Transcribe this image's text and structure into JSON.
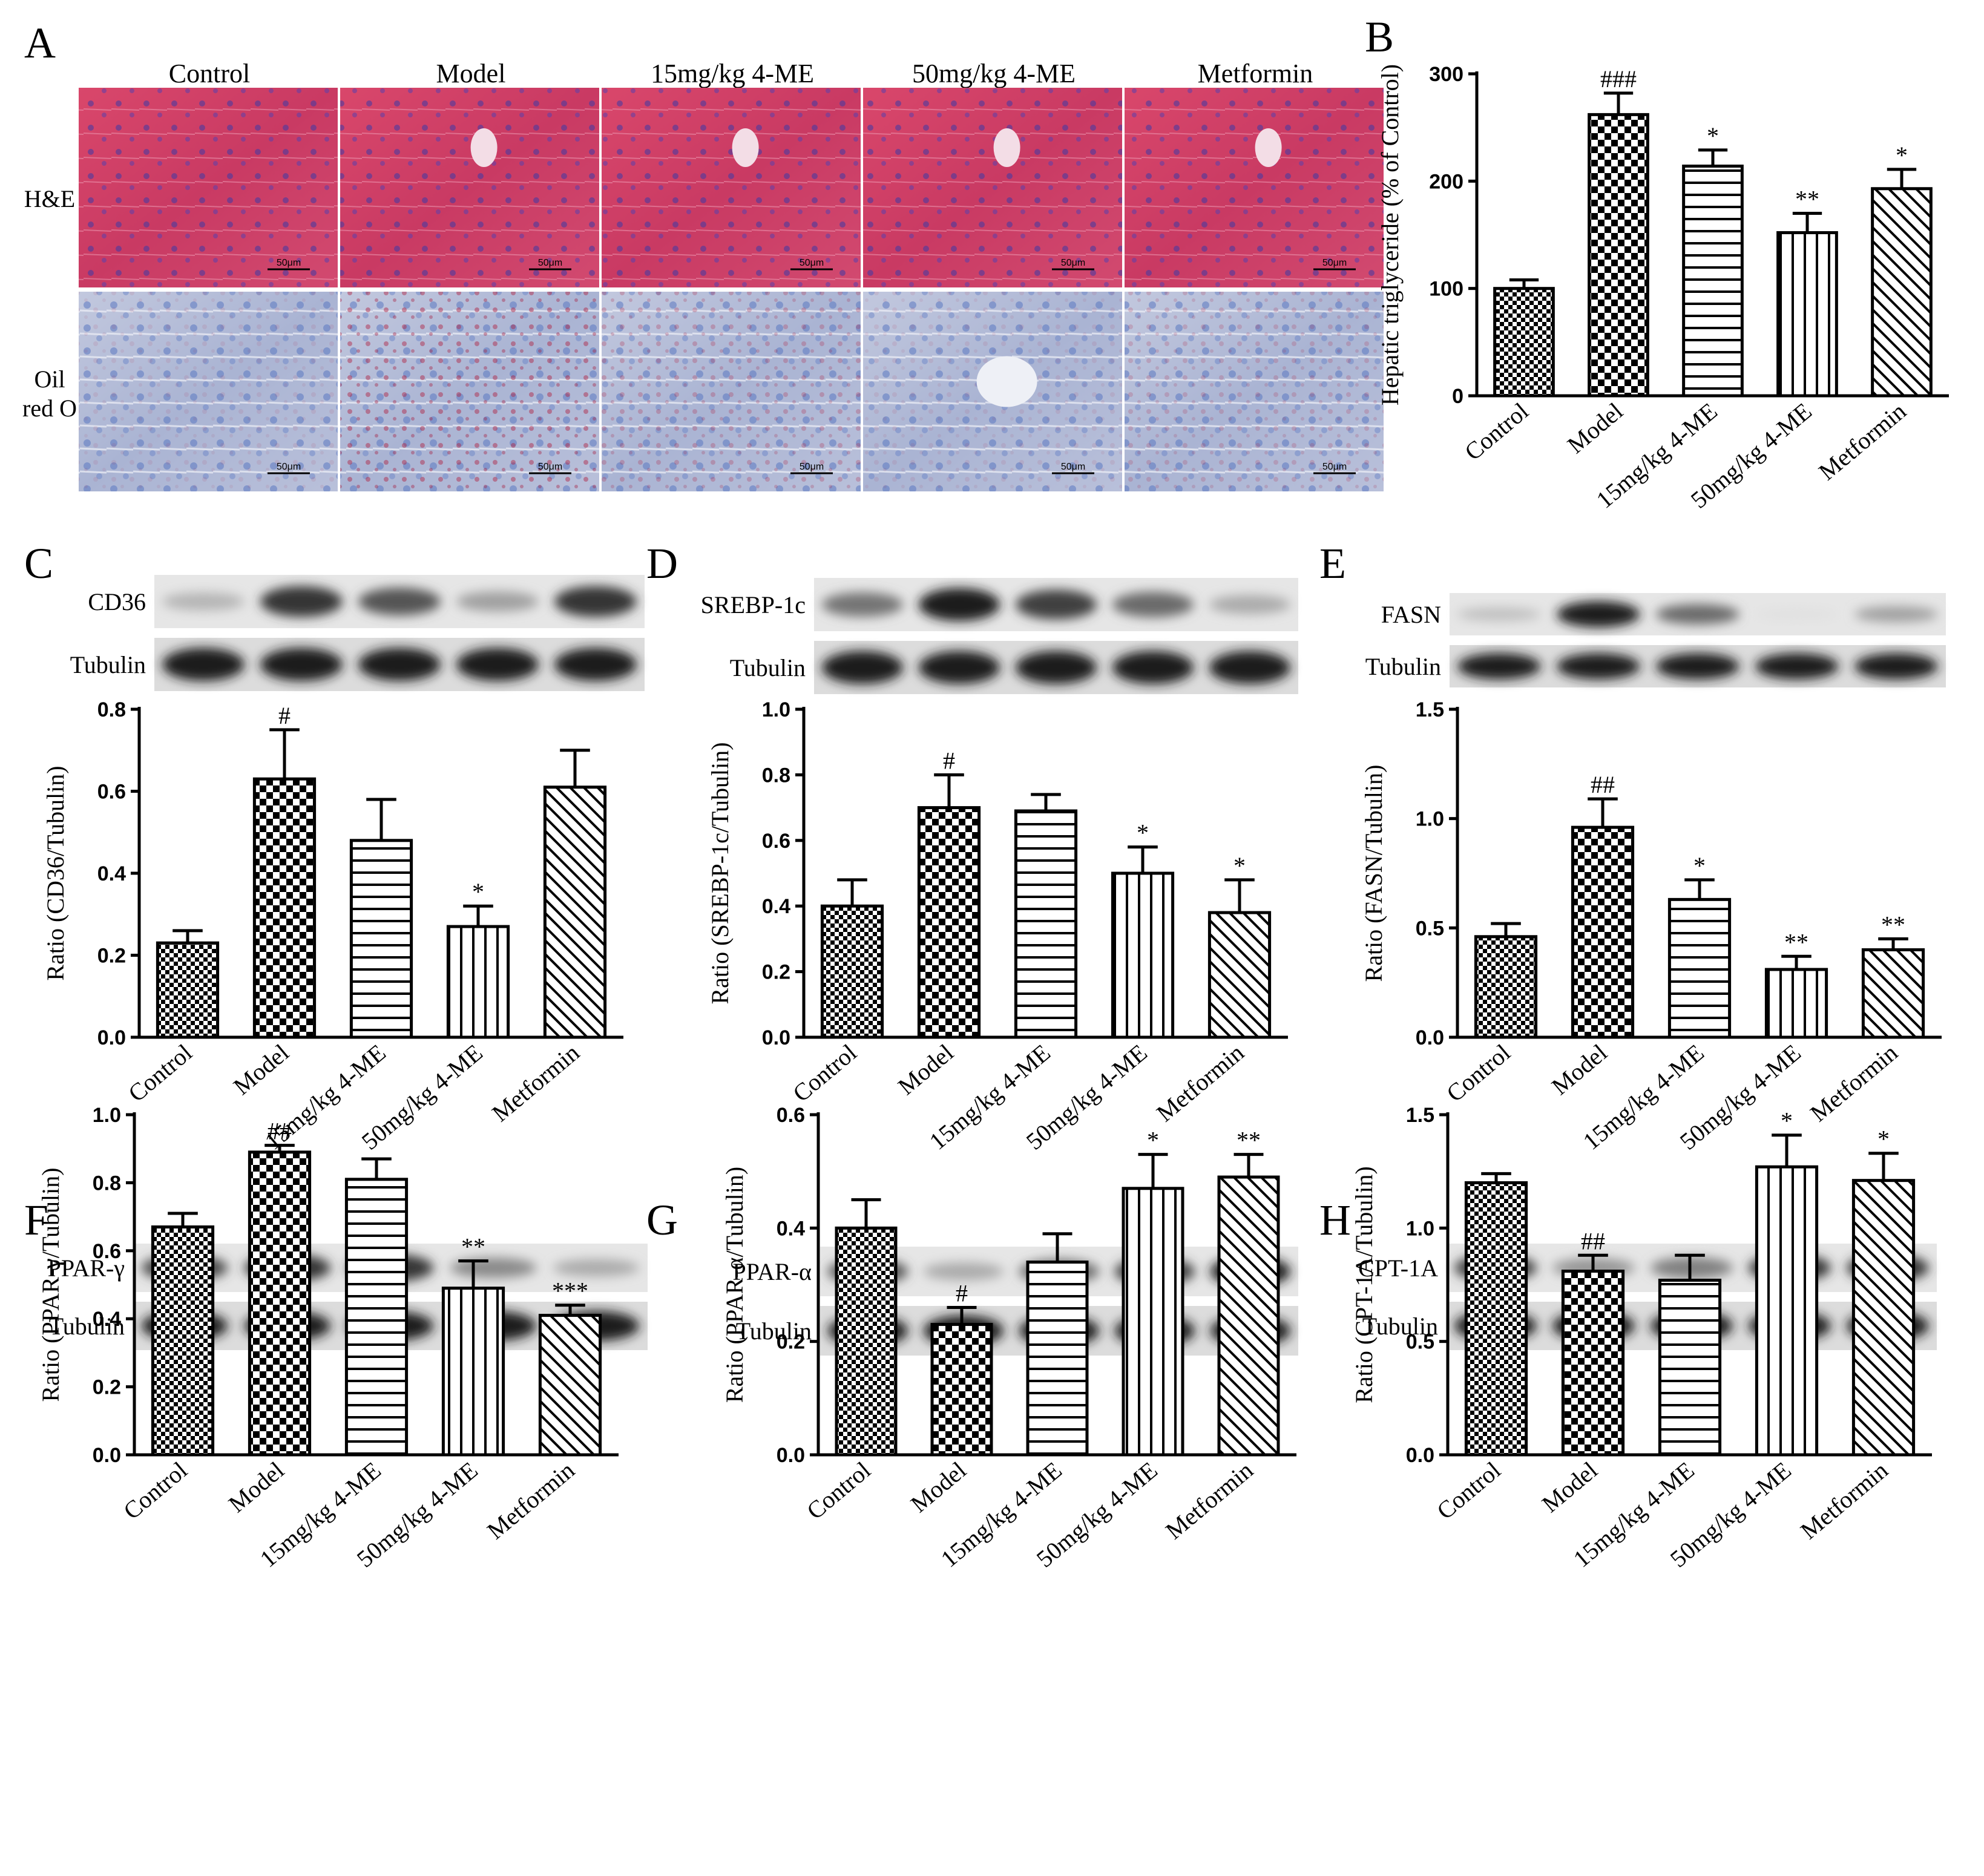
{
  "figure": {
    "groups": [
      "Control",
      "Model",
      "15mg/kg 4-ME",
      "50mg/kg 4-ME",
      "Metformin"
    ]
  },
  "panel_a": {
    "letter": "A",
    "columns": [
      "Control",
      "Model",
      "15mg/kg 4-ME",
      "50mg/kg 4-ME",
      "Metformin"
    ],
    "rows": [
      "H&E",
      "Oil red O"
    ],
    "scale_label": "50μm"
  },
  "blots": {
    "C": {
      "target": "CD36",
      "loading": "Tubulin",
      "intensity": [
        0.25,
        0.85,
        0.7,
        0.35,
        0.85
      ]
    },
    "D": {
      "target": "SREBP-1c",
      "loading": "Tubulin",
      "intensity": [
        0.55,
        0.95,
        0.8,
        0.6,
        0.3
      ]
    },
    "E": {
      "target": "FASN",
      "loading": "Tubulin",
      "intensity": [
        0.2,
        0.95,
        0.6,
        0.05,
        0.35
      ]
    },
    "F": {
      "target": "PPAR-γ",
      "loading": "Tubulin",
      "intensity": [
        0.75,
        0.85,
        0.85,
        0.45,
        0.3
      ]
    },
    "G": {
      "target": "PPAR-α",
      "loading": "Tubulin",
      "intensity": [
        0.7,
        0.3,
        0.6,
        0.8,
        0.95
      ]
    },
    "H": {
      "target": "CPT-1A",
      "loading": "Tubulin",
      "intensity": [
        0.8,
        0.4,
        0.5,
        0.85,
        0.85
      ]
    }
  },
  "colors": {
    "bar_stroke": "#000000",
    "fill": "#ffffff"
  },
  "chart_data": [
    {
      "panel": "B",
      "type": "bar",
      "categories": [
        "Control",
        "Model",
        "15mg/kg 4-ME",
        "50mg/kg 4-ME",
        "Metformin"
      ],
      "values": [
        100,
        262,
        214,
        152,
        193
      ],
      "errors": [
        8,
        20,
        15,
        18,
        18
      ],
      "significance": [
        "",
        "###",
        "*",
        "**",
        "*"
      ],
      "patterns": [
        "check",
        "check-big",
        "hlines",
        "vlines",
        "diag"
      ],
      "ylabel": "Hepatic triglyceride (% of Control)",
      "ylim": [
        0,
        300
      ],
      "yticks": [
        0,
        100,
        200,
        300
      ],
      "ytick_labels": [
        "0",
        "100",
        "200",
        "300"
      ],
      "grid": false
    },
    {
      "panel": "C",
      "type": "bar",
      "categories": [
        "Control",
        "Model",
        "15mg/kg 4-ME",
        "50mg/kg 4-ME",
        "Metformin"
      ],
      "values": [
        0.23,
        0.63,
        0.48,
        0.27,
        0.61
      ],
      "errors": [
        0.03,
        0.12,
        0.1,
        0.05,
        0.09
      ],
      "significance": [
        "",
        "#",
        "",
        "*",
        ""
      ],
      "patterns": [
        "check",
        "check-big",
        "hlines",
        "vlines",
        "diag"
      ],
      "ylabel": "Ratio (CD36/Tubulin)",
      "ylim": [
        0,
        0.8
      ],
      "yticks": [
        0,
        0.2,
        0.4,
        0.6,
        0.8
      ],
      "ytick_labels": [
        "0.0",
        "0.2",
        "0.4",
        "0.6",
        "0.8"
      ],
      "grid": false
    },
    {
      "panel": "D",
      "type": "bar",
      "categories": [
        "Control",
        "Model",
        "15mg/kg 4-ME",
        "50mg/kg 4-ME",
        "Metformin"
      ],
      "values": [
        0.4,
        0.7,
        0.69,
        0.5,
        0.38
      ],
      "errors": [
        0.08,
        0.1,
        0.05,
        0.08,
        0.1
      ],
      "significance": [
        "",
        "#",
        "",
        "*",
        "*"
      ],
      "patterns": [
        "check",
        "check-big",
        "hlines",
        "vlines",
        "diag"
      ],
      "ylabel": "Ratio (SREBP-1c/Tubulin)",
      "ylim": [
        0,
        1.0
      ],
      "yticks": [
        0,
        0.2,
        0.4,
        0.6,
        0.8,
        1.0
      ],
      "ytick_labels": [
        "0.0",
        "0.2",
        "0.4",
        "0.6",
        "0.8",
        "1.0"
      ],
      "grid": false
    },
    {
      "panel": "E",
      "type": "bar",
      "categories": [
        "Control",
        "Model",
        "15mg/kg 4-ME",
        "50mg/kg 4-ME",
        "Metformin"
      ],
      "values": [
        0.46,
        0.96,
        0.63,
        0.31,
        0.4
      ],
      "errors": [
        0.06,
        0.13,
        0.09,
        0.06,
        0.05
      ],
      "significance": [
        "",
        "##",
        "*",
        "**",
        "**"
      ],
      "patterns": [
        "check",
        "check-big",
        "hlines",
        "vlines",
        "diag"
      ],
      "ylabel": "Ratio (FASN/Tubulin)",
      "ylim": [
        0,
        1.5
      ],
      "yticks": [
        0,
        0.5,
        1.0,
        1.5
      ],
      "ytick_labels": [
        "0.0",
        "0.5",
        "1.0",
        "1.5"
      ],
      "grid": false
    },
    {
      "panel": "F",
      "type": "bar",
      "categories": [
        "Control",
        "Model",
        "15mg/kg 4-ME",
        "50mg/kg 4-ME",
        "Metformin"
      ],
      "values": [
        0.67,
        0.89,
        0.81,
        0.49,
        0.41
      ],
      "errors": [
        0.04,
        0.02,
        0.06,
        0.08,
        0.03
      ],
      "significance": [
        "",
        "##",
        "",
        "**",
        "***"
      ],
      "patterns": [
        "check",
        "check-big",
        "hlines",
        "vlines",
        "diag"
      ],
      "ylabel": "Ratio (PPAR-γ/Tubulin)",
      "ylim": [
        0,
        1.0
      ],
      "yticks": [
        0,
        0.2,
        0.4,
        0.6,
        0.8,
        1.0
      ],
      "ytick_labels": [
        "0.0",
        "0.2",
        "0.4",
        "0.6",
        "0.8",
        "1.0"
      ],
      "grid": false
    },
    {
      "panel": "G",
      "type": "bar",
      "categories": [
        "Control",
        "Model",
        "15mg/kg 4-ME",
        "50mg/kg 4-ME",
        "Metformin"
      ],
      "values": [
        0.4,
        0.23,
        0.34,
        0.47,
        0.49
      ],
      "errors": [
        0.05,
        0.03,
        0.05,
        0.06,
        0.04
      ],
      "significance": [
        "",
        "#",
        "",
        "*",
        "**"
      ],
      "patterns": [
        "check",
        "check-big",
        "hlines",
        "vlines",
        "diag"
      ],
      "ylabel": "Ratio (PPAR-α/Tubulin)",
      "ylim": [
        0,
        0.6
      ],
      "yticks": [
        0,
        0.2,
        0.4,
        0.6
      ],
      "ytick_labels": [
        "0.0",
        "0.2",
        "0.4",
        "0.6"
      ],
      "grid": false
    },
    {
      "panel": "H",
      "type": "bar",
      "categories": [
        "Control",
        "Model",
        "15mg/kg 4-ME",
        "50mg/kg 4-ME",
        "Metformin"
      ],
      "values": [
        1.2,
        0.81,
        0.77,
        1.27,
        1.21
      ],
      "errors": [
        0.04,
        0.07,
        0.11,
        0.14,
        0.12
      ],
      "significance": [
        "",
        "##",
        "",
        "*",
        "*"
      ],
      "patterns": [
        "check",
        "check-big",
        "hlines",
        "vlines",
        "diag"
      ],
      "ylabel": "Ratio (CPT-1A/Tubulin)",
      "ylim": [
        0,
        1.5
      ],
      "yticks": [
        0,
        0.5,
        1.0,
        1.5
      ],
      "ytick_labels": [
        "0.0",
        "0.5",
        "1.0",
        "1.5"
      ],
      "grid": false
    }
  ]
}
